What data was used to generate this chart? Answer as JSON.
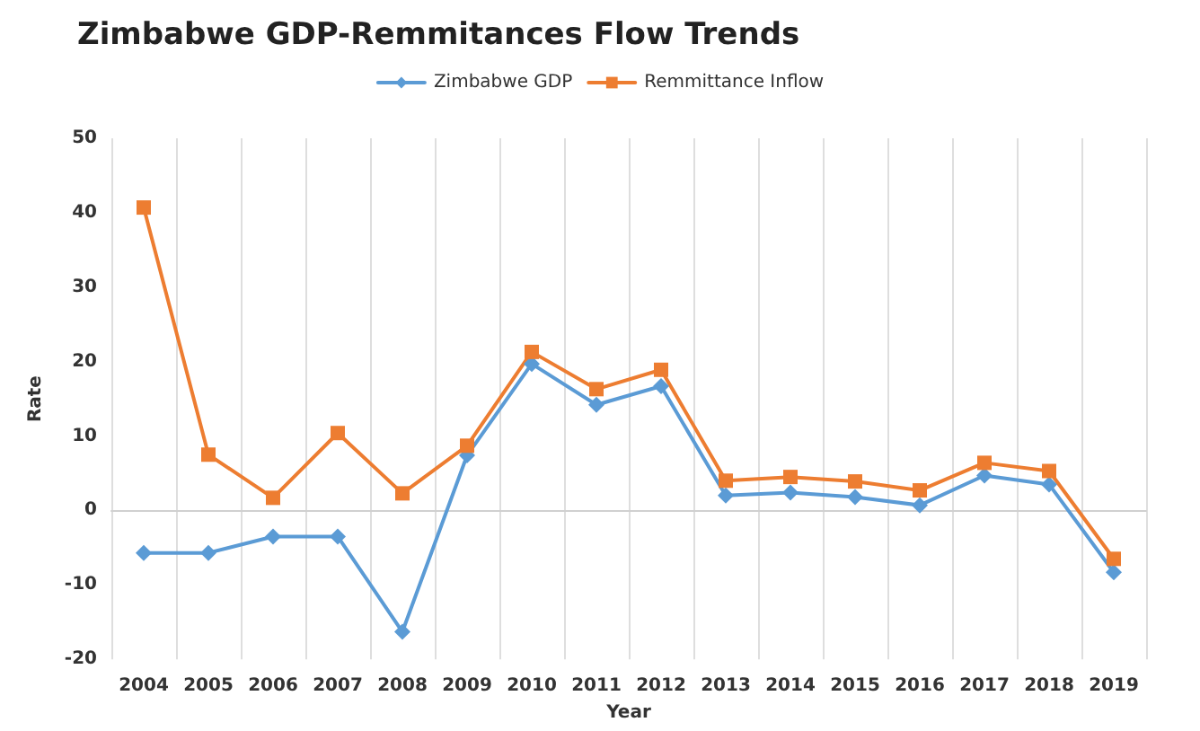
{
  "chart_data": {
    "type": "line",
    "title": "Zimbabwe GDP-Remmitances Flow Trends",
    "xlabel": "Year",
    "ylabel": "Rate",
    "categories": [
      "2004",
      "2005",
      "2006",
      "2007",
      "2008",
      "2009",
      "2010",
      "2011",
      "2012",
      "2013",
      "2014",
      "2015",
      "2016",
      "2017",
      "2018",
      "2019"
    ],
    "series": [
      {
        "name": "Zimbabwe GDP",
        "color": "#5b9bd5",
        "marker": "diamond",
        "values": [
          -5.7,
          -5.7,
          -3.5,
          -3.5,
          -16.3,
          7.4,
          19.7,
          14.2,
          16.7,
          2.0,
          2.4,
          1.8,
          0.7,
          4.7,
          3.5,
          -8.3
        ]
      },
      {
        "name": "Remmittance Inflow",
        "color": "#ed7d31",
        "marker": "square",
        "values": [
          40.7,
          7.5,
          1.7,
          10.4,
          2.3,
          8.7,
          21.3,
          16.3,
          18.9,
          4.0,
          4.5,
          3.9,
          2.7,
          6.4,
          5.3,
          -6.5
        ]
      }
    ],
    "ylim": [
      -20,
      50
    ],
    "yticks": [
      -20,
      -10,
      0,
      10,
      20,
      30,
      40,
      50
    ],
    "grid": "x",
    "legend": "top",
    "line_style": "solid"
  }
}
